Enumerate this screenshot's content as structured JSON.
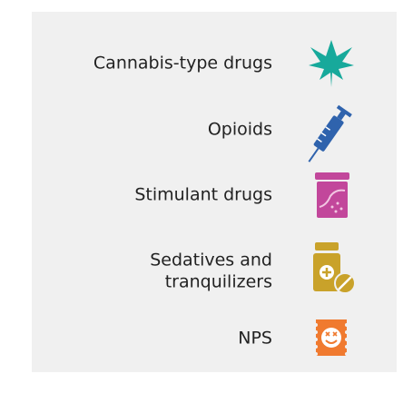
{
  "items": [
    {
      "lines": [
        "Cannabis-type drugs"
      ]
    },
    {
      "lines": [
        "Opioids"
      ]
    },
    {
      "lines": [
        "Stimulant drugs"
      ]
    },
    {
      "lines": [
        "Sedatives and",
        "tranquilizers"
      ]
    },
    {
      "lines": [
        "NPS"
      ]
    }
  ]
}
